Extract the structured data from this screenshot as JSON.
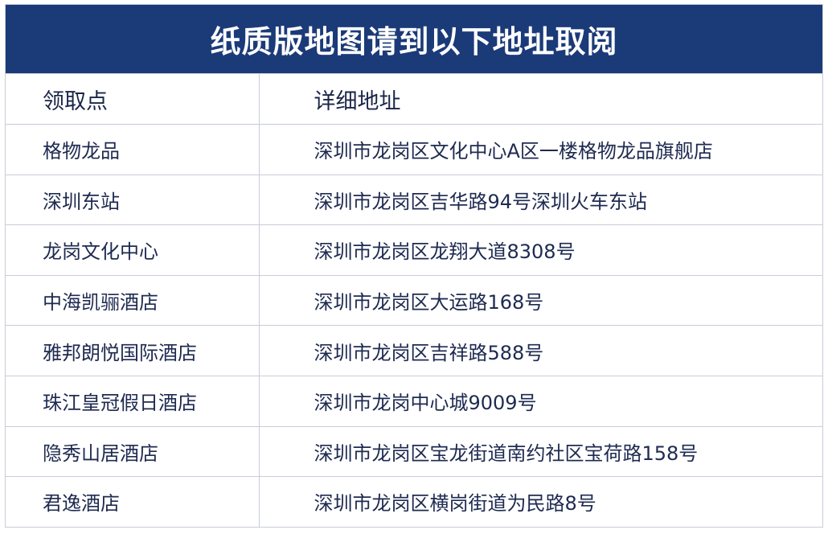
{
  "title": "纸质版地图请到以下地址取阅",
  "colors": {
    "header_bg": "#1b3a78",
    "text": "#1e2a50",
    "border": "#c9ccd8"
  },
  "table": {
    "headers": [
      "领取点",
      "详细地址"
    ],
    "rows": [
      {
        "point": "格物龙品",
        "address": "深圳市龙岗区文化中心A区一楼格物龙品旗舰店"
      },
      {
        "point": "深圳东站",
        "address": "深圳市龙岗区吉华路94号深圳火车东站"
      },
      {
        "point": "龙岗文化中心",
        "address": "深圳市龙岗区龙翔大道8308号"
      },
      {
        "point": "中海凯骊酒店",
        "address": "深圳市龙岗区大运路168号"
      },
      {
        "point": "雅邦朗悦国际酒店",
        "address": "深圳市龙岗区吉祥路588号"
      },
      {
        "point": "珠江皇冠假日酒店",
        "address": "深圳市龙岗中心城9009号"
      },
      {
        "point": "隐秀山居酒店",
        "address": "深圳市龙岗区宝龙街道南约社区宝荷路158号"
      },
      {
        "point": "君逸酒店",
        "address": "深圳市龙岗区横岗街道为民路8号"
      }
    ]
  }
}
